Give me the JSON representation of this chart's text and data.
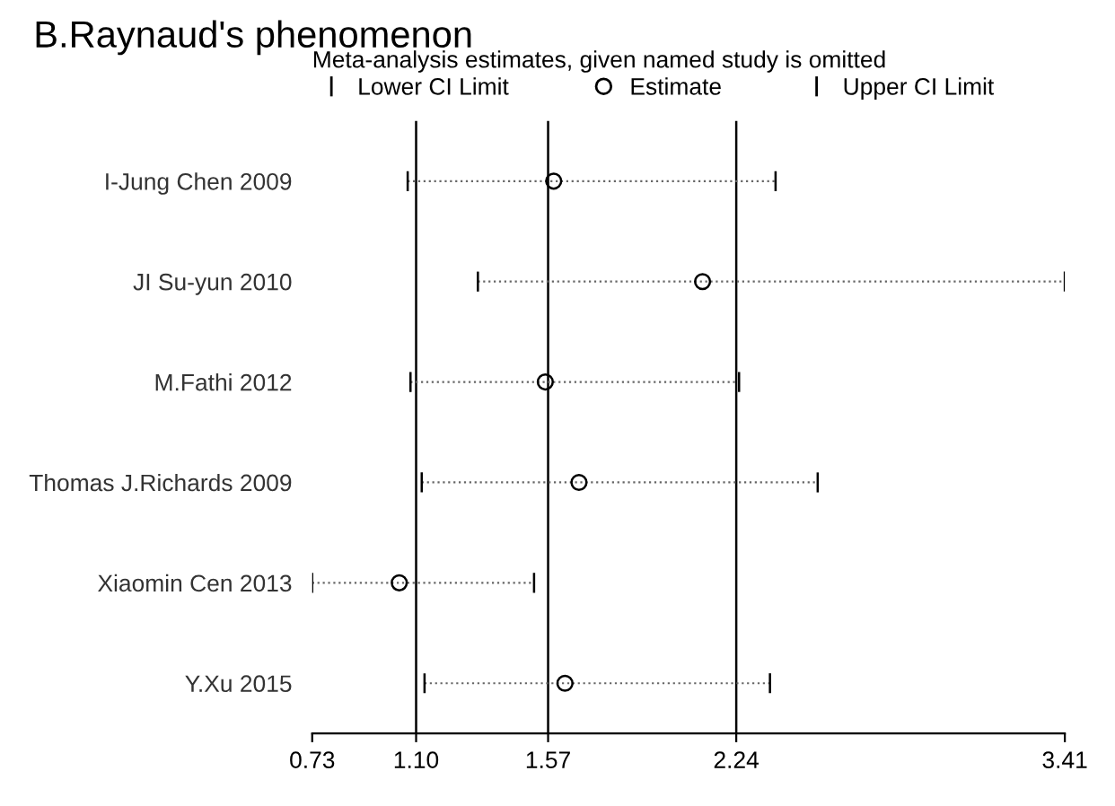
{
  "chart_data": {
    "type": "scatter",
    "orientation": "horizontal",
    "title": "B.Raynaud's phenomenon",
    "subtitle": "Meta-analysis estimates, given named study is omitted",
    "categories": [
      "I-Jung Chen 2009",
      "JI Su-yun 2010",
      "M.Fathi 2012",
      "Thomas J.Richards 2009",
      "Xiaomin Cen 2013",
      "Y.Xu 2015"
    ],
    "series": [
      {
        "name": "Estimate",
        "color": "#000000",
        "marker": "circle",
        "values": [
          1.59,
          2.12,
          1.56,
          1.68,
          1.04,
          1.63
        ],
        "errors": [
          [
            1.07,
            2.38
          ],
          [
            1.32,
            3.41
          ],
          [
            1.08,
            2.25
          ],
          [
            1.12,
            2.53
          ],
          [
            0.73,
            1.52
          ],
          [
            1.13,
            2.36
          ]
        ]
      }
    ],
    "annotations": [
      "Lower CI Limit",
      "Upper CI Limit"
    ],
    "line_style": "dotted",
    "xlim": [
      0.73,
      3.41
    ],
    "xticks": [
      0.73,
      {
        "value": 1.1,
        "label": "1.10"
      },
      1.57,
      2.24,
      3.41
    ],
    "ref_lines": [
      {
        "axis": "x",
        "value": 1.1,
        "color": "#000000"
      },
      {
        "axis": "x",
        "value": 1.57,
        "color": "#000000"
      },
      {
        "axis": "x",
        "value": 2.24,
        "color": "#000000"
      }
    ],
    "legend": "top",
    "grid": false
  }
}
